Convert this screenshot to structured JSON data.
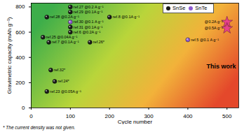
{
  "chart_data": {
    "type": "scatter",
    "xlabel": "Cycle number",
    "ylabel": "Gravimetric capacity (mAh g⁻¹)",
    "xlim": [
      0,
      530
    ],
    "xticks": [
      0,
      100,
      200,
      300,
      400,
      500
    ],
    "ylim": [
      0,
      830
    ],
    "yticks": [
      0,
      200,
      400,
      600,
      800
    ],
    "legend": "top-right",
    "footnote": "* The current density was not given.",
    "series": [
      {
        "name": "SnSe",
        "color": "#1a1a1a",
        "marker": "circle",
        "x": [
          100,
          100,
          40,
          100,
          100,
          30,
          45,
          150,
          200,
          50,
          60,
          40
        ],
        "values": [
          800,
          760,
          720,
          640,
          600,
          560,
          520,
          520,
          720,
          300,
          210,
          130
        ],
        "point_labels": [
          "ref.27 @0.2 A g⁻¹",
          "ref.29 @0.1A g⁻¹",
          "ref.28 @0.2A g⁻¹",
          "ref.31 @0.1A g⁻¹",
          "ref.6 @0.2A g⁻¹",
          "ref.25 @0.04A g⁻¹",
          "ref.7 @0.1A g⁻¹",
          "ref.26*",
          "ref.8 @0.1A g⁻¹",
          "ref.32*",
          "ref.24*",
          "ref.23 @0.05A g⁻¹"
        ]
      },
      {
        "name": "SnTe",
        "color": "#8e5bd0",
        "marker": "circle",
        "x": [
          100,
          400
        ],
        "values": [
          680,
          540
        ],
        "point_labels": [
          "ref.30 @0.1 A g⁻¹",
          "ref.5 @0.1 A g⁻¹"
        ]
      }
    ],
    "this_work": {
      "text": "This work",
      "color": "#e8428c",
      "marker": "star",
      "x": [
        500,
        500
      ],
      "values": [
        680,
        630
      ],
      "point_labels": [
        "@0.2A g⁻¹",
        "@0.5A g⁻¹"
      ]
    }
  }
}
